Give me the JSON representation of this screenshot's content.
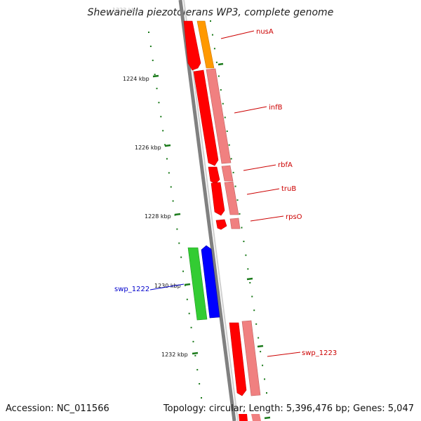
{
  "title": "Shewanella piezotolerans WP3, complete genome",
  "footer": {
    "accession": "Accession: NC_011566",
    "summary": "Topology: circular; Length: 5,396,476 bp; Genes: 5,047"
  },
  "scale_labels": [
    "1224 kbp",
    "1226 kbp",
    "1228 kbp",
    "1230 kbp",
    "1232 kbp"
  ],
  "top_label_faded": "1222 kbp",
  "genes": [
    {
      "name": "nusA",
      "color": "#cc0000"
    },
    {
      "name": "infB",
      "color": "#cc0000"
    },
    {
      "name": "rbfA",
      "color": "#cc0000"
    },
    {
      "name": "truB",
      "color": "#cc0000"
    },
    {
      "name": "rpsO",
      "color": "#cc0000"
    },
    {
      "name": "swp_1222",
      "color": "#0000cc"
    },
    {
      "name": "swp_1223",
      "color": "#cc0000"
    }
  ],
  "colors": {
    "forward_cds": "#ff0000",
    "forward_gene_light": "#f08080",
    "orange_gene": "#ff9900",
    "reverse_cds": "#0000ff",
    "green_gene": "#33cc33",
    "ticks": "#1a7a1a",
    "backbone": "#808080"
  }
}
